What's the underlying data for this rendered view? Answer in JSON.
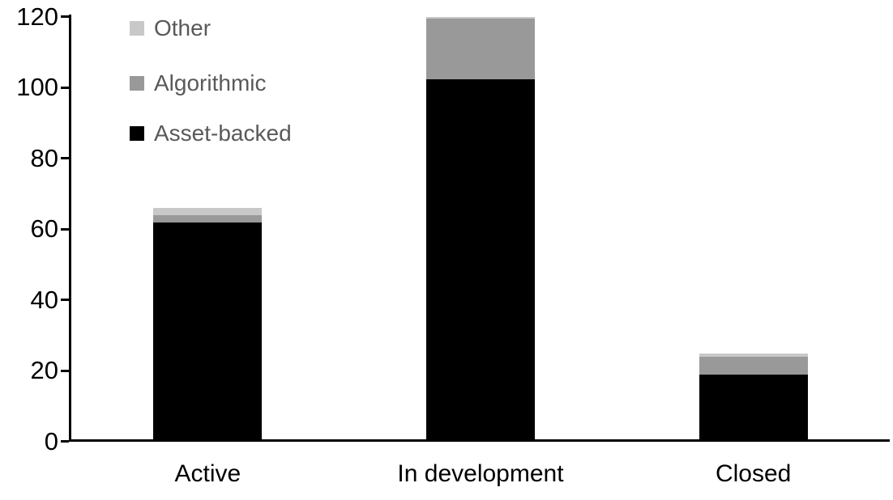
{
  "chart": {
    "background": "#ffffff",
    "axis_color": "#000000",
    "legend": {
      "position": "upper-left-inside",
      "text_color": "#595959",
      "items": [
        {
          "label": "Other",
          "color": "#c8c8c8"
        },
        {
          "label": "Algorithmic",
          "color": "#999999"
        },
        {
          "label": "Asset-backed",
          "color": "#000000"
        }
      ]
    }
  },
  "chart_data": {
    "type": "bar",
    "stacked": true,
    "title": "",
    "xlabel": "",
    "ylabel": "",
    "categories": [
      "Active",
      "In development",
      "Closed"
    ],
    "series": [
      {
        "name": "Asset-backed",
        "color": "#000000",
        "values": [
          62,
          102.5,
          19
        ]
      },
      {
        "name": "Algorithmic",
        "color": "#999999",
        "values": [
          2,
          17,
          5
        ]
      },
      {
        "name": "Other",
        "color": "#c8c8c8",
        "values": [
          2,
          0.5,
          1
        ]
      }
    ],
    "totals": [
      66,
      120,
      25
    ],
    "ylim": [
      0,
      120
    ],
    "yticks": [
      0,
      20,
      40,
      60,
      80,
      100,
      120
    ],
    "grid": false,
    "legend_position": "upper-left-inside"
  }
}
